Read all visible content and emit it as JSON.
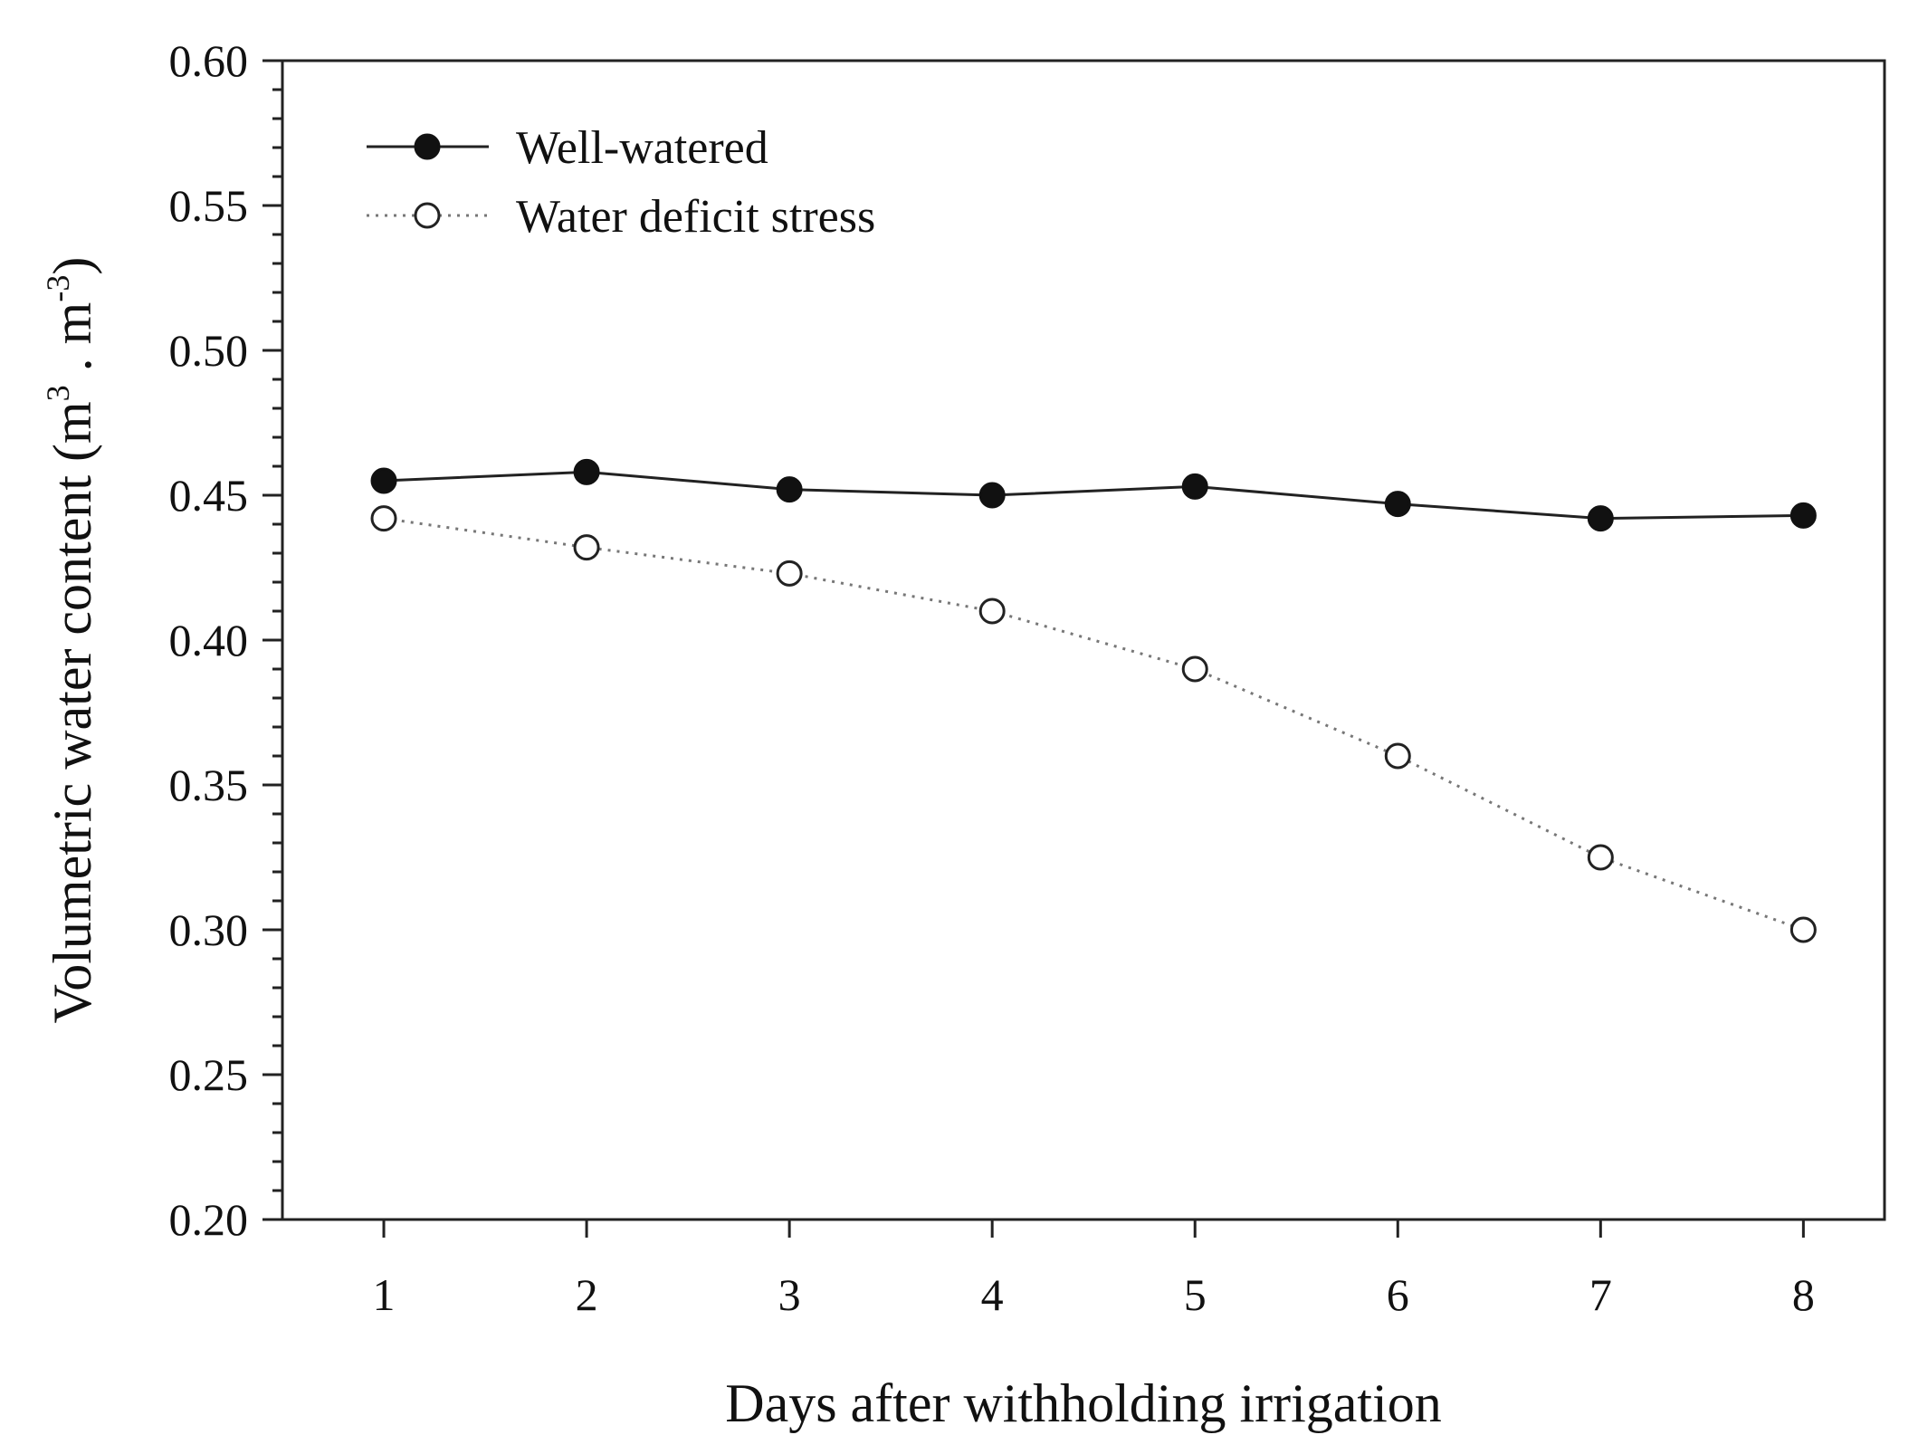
{
  "chart_data": {
    "type": "line",
    "title": "",
    "xlabel": "Days after withholding irrigation",
    "ylabel": {
      "main": "Volumetric water content (m",
      "sup1": "3",
      "mid": " . m",
      "sup2": "-3",
      "end": ")"
    },
    "x": [
      1,
      2,
      3,
      4,
      5,
      6,
      7,
      8
    ],
    "x_tick_labels": [
      "1",
      "2",
      "3",
      "4",
      "5",
      "6",
      "7",
      "8"
    ],
    "xlim": [
      0.5,
      8.4
    ],
    "ylim": [
      0.2,
      0.6
    ],
    "y_tick_values": [
      0.2,
      0.25,
      0.3,
      0.35,
      0.4,
      0.45,
      0.5,
      0.55,
      0.6
    ],
    "y_tick_labels": [
      "0.20",
      "0.25",
      "0.30",
      "0.35",
      "0.40",
      "0.45",
      "0.50",
      "0.55",
      "0.60"
    ],
    "grid": false,
    "legend_position": "top-left",
    "series": [
      {
        "name": "Well-watered",
        "marker": "filled-circle",
        "line_style": "solid",
        "values": [
          0.455,
          0.458,
          0.452,
          0.45,
          0.453,
          0.447,
          0.442,
          0.443
        ]
      },
      {
        "name": "Water deficit stress",
        "marker": "open-circle",
        "line_style": "dotted",
        "values": [
          0.442,
          0.432,
          0.423,
          0.41,
          0.39,
          0.36,
          0.325,
          0.3
        ]
      }
    ]
  }
}
